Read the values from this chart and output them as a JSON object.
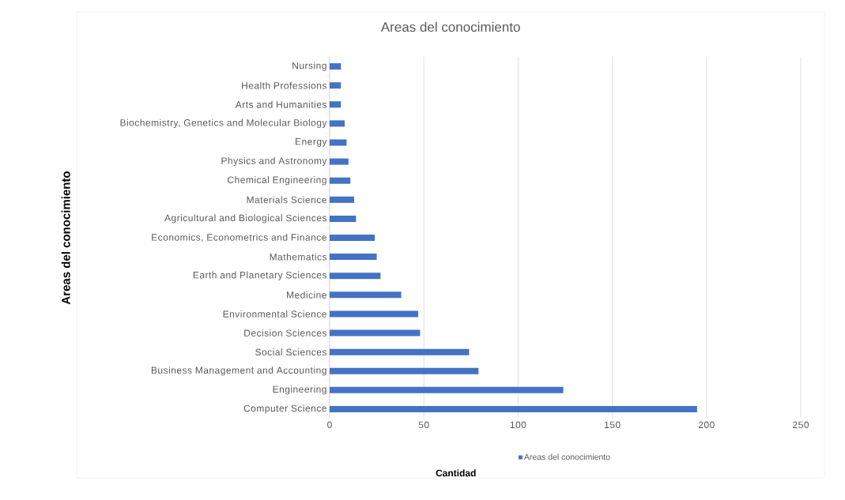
{
  "chart_data": {
    "type": "bar",
    "orientation": "horizontal",
    "title": "Areas del conocimiento",
    "xlabel": "Cantidad",
    "ylabel": "Areas del conocimiento",
    "categories": [
      "Nursing",
      "Health Professions",
      "Arts and Humanities",
      "Biochemistry,  Genetics and Molecular Biology",
      "Energy",
      "Physics and Astronomy",
      "Chemical Engineering",
      "Materials Science",
      "Agricultural and Biological Sciences",
      "Economics,  Econometrics and Finance",
      "Mathematics",
      "Earth and Planetary Sciences",
      "Medicine",
      "Environmental Science",
      "Decision Sciences",
      "Social Sciences",
      "Business Management and Accounting",
      "Engineering",
      "Computer Science"
    ],
    "series": [
      {
        "name": "Areas del conocimiento",
        "color": "#4472c4",
        "values": [
          6,
          6,
          6,
          8,
          9,
          10,
          11,
          13,
          14,
          24,
          25,
          27,
          38,
          47,
          48,
          74,
          79,
          124,
          195
        ]
      }
    ],
    "xlim": [
      0,
      250
    ],
    "xticks": [
      0,
      50,
      100,
      150,
      200,
      250
    ],
    "grid": "x",
    "legend": "bottom"
  }
}
